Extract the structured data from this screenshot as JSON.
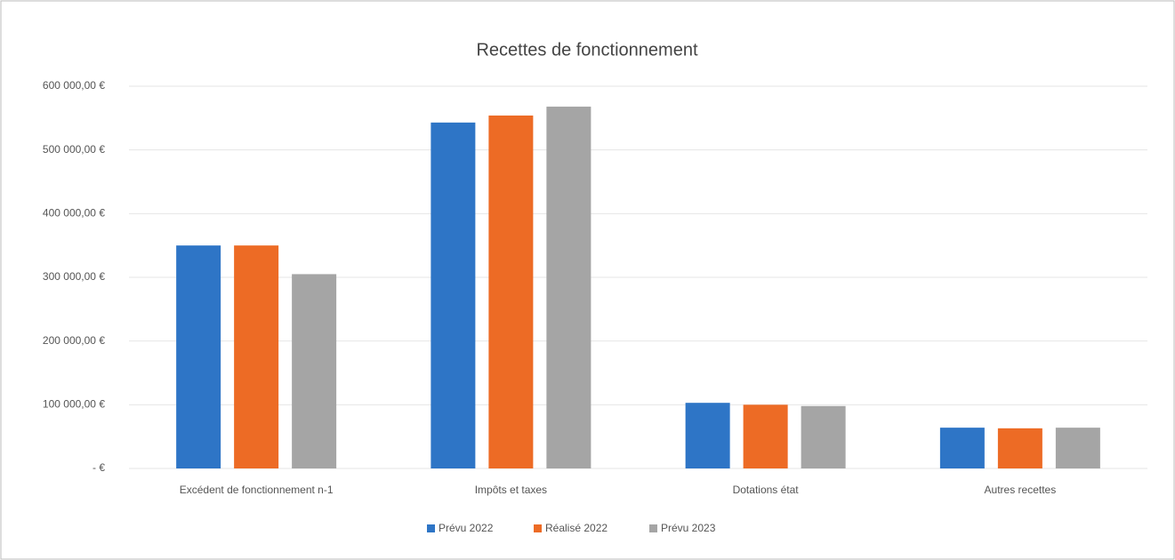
{
  "chart_data": {
    "type": "bar",
    "title": "Recettes de fonctionnement",
    "categories": [
      "Excédent de fonctionnement n-1",
      "Impôts et taxes",
      "Dotations état",
      "Autres recettes"
    ],
    "series": [
      {
        "name": "Prévu 2022",
        "color": "#2e75c6",
        "values": [
          350000,
          543000,
          103000,
          64000
        ]
      },
      {
        "name": "Réalisé 2022",
        "color": "#ed6b25",
        "values": [
          350000,
          554000,
          100000,
          63000
        ]
      },
      {
        "name": "Prévu 2023",
        "color": "#a5a5a5",
        "values": [
          305000,
          568000,
          98000,
          64000
        ]
      }
    ],
    "ylim": [
      0,
      600000
    ],
    "yticks": [
      {
        "value": 0,
        "label": "- €"
      },
      {
        "value": 100000,
        "label": "100 000,00 €"
      },
      {
        "value": 200000,
        "label": "200 000,00 €"
      },
      {
        "value": 300000,
        "label": "300 000,00 €"
      },
      {
        "value": 400000,
        "label": "400 000,00 €"
      },
      {
        "value": 500000,
        "label": "500 000,00 €"
      },
      {
        "value": 600000,
        "label": "600 000,00 €"
      }
    ],
    "grid": true,
    "legend": "bottom"
  }
}
